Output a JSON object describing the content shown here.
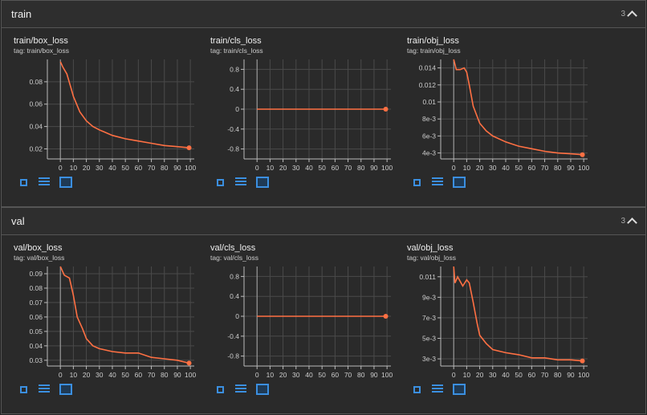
{
  "sections": [
    {
      "name": "train",
      "count": "3",
      "charts": [
        {
          "title": "train/box_loss",
          "tag": "tag: train/box_loss",
          "ylim": [
            0.011,
            0.1
          ],
          "yticks": [
            0.02,
            0.04,
            0.06,
            0.08
          ],
          "ylabels": [
            "0.02",
            "0.04",
            "0.06",
            "0.08"
          ],
          "x": [
            0,
            2,
            5,
            8,
            10,
            15,
            20,
            25,
            30,
            40,
            50,
            60,
            70,
            80,
            90,
            99
          ],
          "y": [
            0.098,
            0.093,
            0.087,
            0.075,
            0.067,
            0.053,
            0.045,
            0.04,
            0.037,
            0.032,
            0.029,
            0.027,
            0.025,
            0.023,
            0.022,
            0.021
          ]
        },
        {
          "title": "train/cls_loss",
          "tag": "tag: train/cls_loss",
          "ylim": [
            -1,
            1
          ],
          "yticks": [
            -0.8,
            -0.4,
            0,
            0.4,
            0.8
          ],
          "ylabels": [
            "-0.8",
            "-0.4",
            "0",
            "0.4",
            "0.8"
          ],
          "x": [
            0,
            99
          ],
          "y": [
            0,
            0
          ]
        },
        {
          "title": "train/obj_loss",
          "tag": "tag: train/obj_loss",
          "ylim": [
            0.0033,
            0.015
          ],
          "yticks": [
            0.004,
            0.006,
            0.008,
            0.01,
            0.012,
            0.014
          ],
          "ylabels": [
            "4e-3",
            "6e-3",
            "8e-3",
            "0.01",
            "0.012",
            "0.014"
          ],
          "x": [
            0,
            2,
            5,
            8,
            10,
            12,
            15,
            20,
            25,
            30,
            40,
            50,
            60,
            70,
            80,
            90,
            99
          ],
          "y": [
            0.015,
            0.0138,
            0.0138,
            0.014,
            0.0135,
            0.012,
            0.0095,
            0.0075,
            0.0066,
            0.006,
            0.0053,
            0.0048,
            0.0045,
            0.0042,
            0.004,
            0.0039,
            0.0038
          ]
        }
      ]
    },
    {
      "name": "val",
      "count": "3",
      "charts": [
        {
          "title": "val/box_loss",
          "tag": "tag: val/box_loss",
          "ylim": [
            0.026,
            0.095
          ],
          "yticks": [
            0.03,
            0.04,
            0.05,
            0.06,
            0.07,
            0.08,
            0.09
          ],
          "ylabels": [
            "0.03",
            "0.04",
            "0.05",
            "0.06",
            "0.07",
            "0.08",
            "0.09"
          ],
          "x": [
            0,
            3,
            7,
            10,
            13,
            17,
            20,
            25,
            30,
            40,
            50,
            60,
            70,
            80,
            90,
            99
          ],
          "y": [
            0.095,
            0.089,
            0.087,
            0.075,
            0.06,
            0.052,
            0.045,
            0.04,
            0.038,
            0.036,
            0.035,
            0.035,
            0.032,
            0.031,
            0.03,
            0.028
          ]
        },
        {
          "title": "val/cls_loss",
          "tag": "tag: val/cls_loss",
          "ylim": [
            -1,
            1
          ],
          "yticks": [
            -0.8,
            -0.4,
            0,
            0.4,
            0.8
          ],
          "ylabels": [
            "-0.8",
            "-0.4",
            "0",
            "0.4",
            "0.8"
          ],
          "x": [
            0,
            99
          ],
          "y": [
            0,
            0
          ]
        },
        {
          "title": "val/obj_loss",
          "tag": "tag: val/obj_loss",
          "ylim": [
            0.0023,
            0.012
          ],
          "yticks": [
            0.003,
            0.005,
            0.007,
            0.009,
            0.011
          ],
          "ylabels": [
            "3e-3",
            "5e-3",
            "7e-3",
            "9e-3",
            "0.011"
          ],
          "x": [
            0,
            1,
            3,
            7,
            10,
            12,
            15,
            18,
            20,
            25,
            30,
            40,
            50,
            60,
            70,
            80,
            90,
            99
          ],
          "y": [
            0.012,
            0.0104,
            0.011,
            0.0101,
            0.0107,
            0.0104,
            0.0085,
            0.0065,
            0.0053,
            0.0045,
            0.0039,
            0.0036,
            0.0034,
            0.0031,
            0.0031,
            0.0029,
            0.0029,
            0.0028
          ]
        }
      ]
    }
  ],
  "xticks": [
    0,
    10,
    20,
    30,
    40,
    50,
    60,
    70,
    80,
    90,
    100
  ],
  "xlim": [
    -10,
    103
  ],
  "line_color": "#ff7043",
  "icons": [
    "fullscreen-icon",
    "data-table-icon",
    "fit-domain-icon"
  ]
}
